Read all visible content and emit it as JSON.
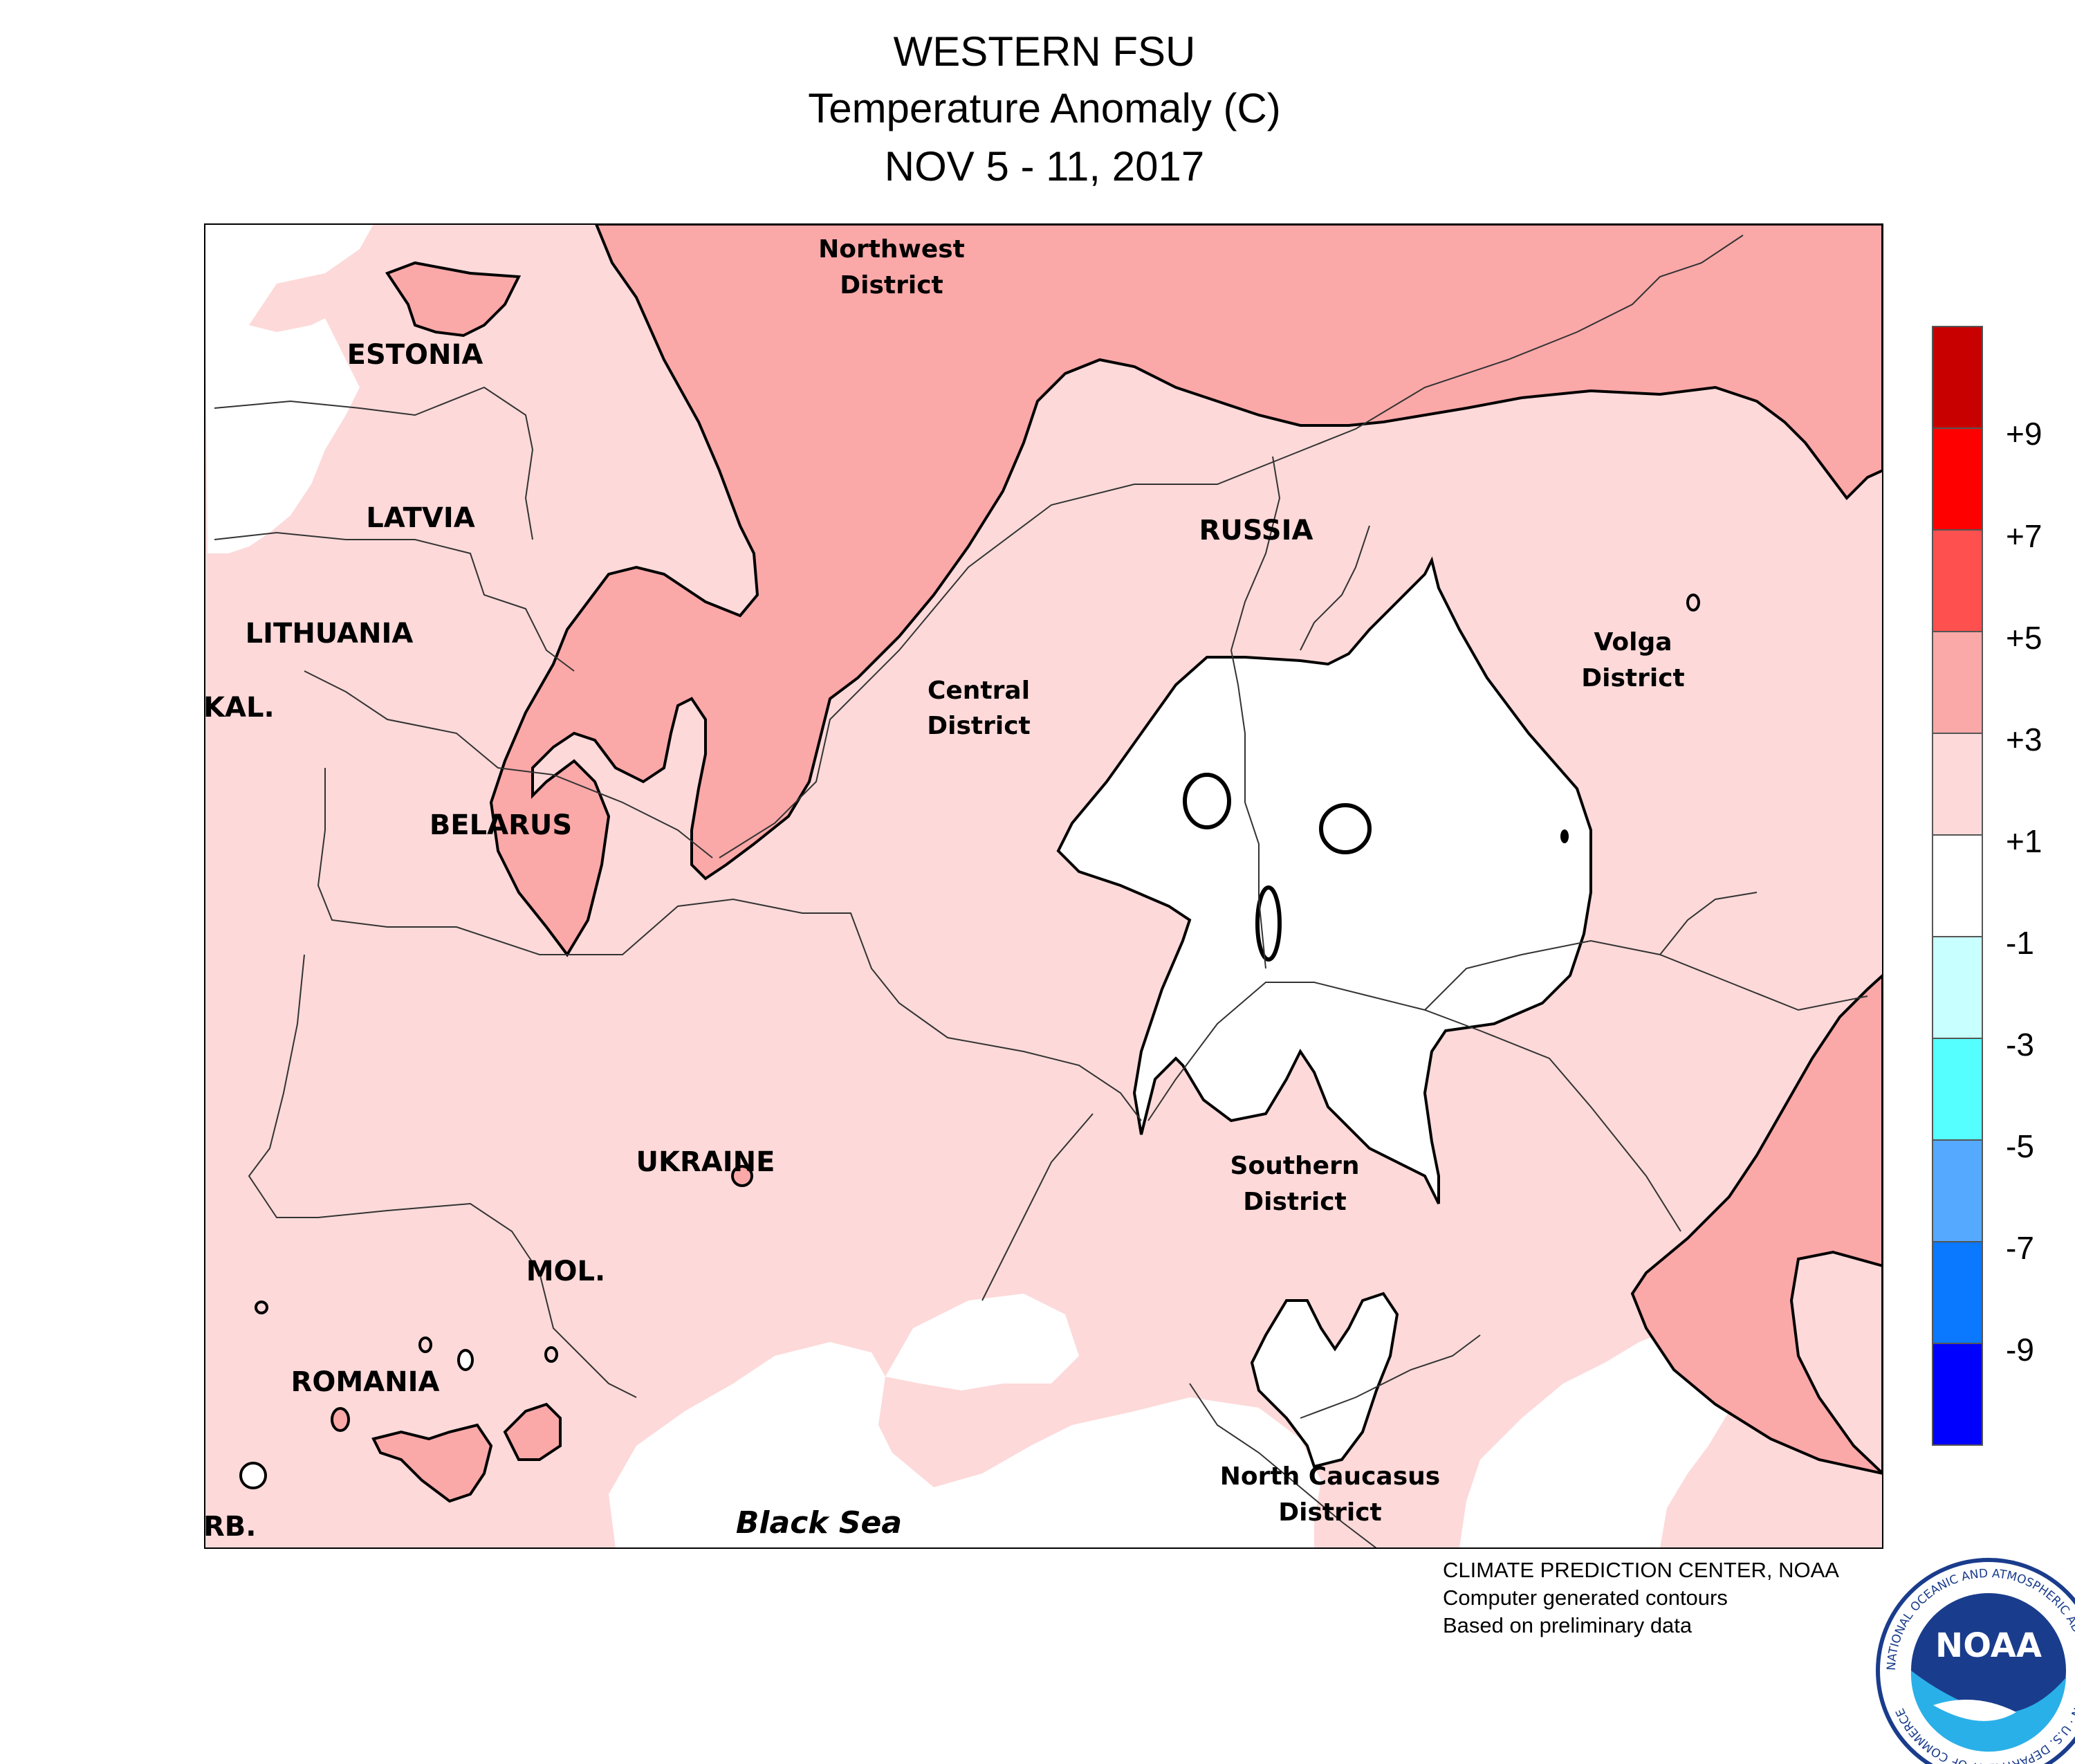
{
  "title": {
    "line1": "WESTERN FSU",
    "line2": "Temperature Anomaly (C)",
    "line3": "NOV 5 - 11, 2017"
  },
  "map": {
    "countries": [
      "ESTONIA",
      "LATVIA",
      "LITHUANIA",
      "KAL.",
      "BELARUS",
      "UKRAINE",
      "MOL.",
      "ROMANIA",
      "RB.",
      "RUSSIA"
    ],
    "districts": {
      "northwest": [
        "Northwest",
        "District"
      ],
      "central": [
        "Central",
        "District"
      ],
      "volga": [
        "Volga",
        "District"
      ],
      "southern": [
        "Southern",
        "District"
      ],
      "north_caucasus": [
        "North Caucasus",
        "District"
      ]
    },
    "sea": "Black Sea"
  },
  "legend": {
    "labels": [
      "+9",
      "+7",
      "+5",
      "+3",
      "+1",
      "-1",
      "-3",
      "-5",
      "-7",
      "-9"
    ],
    "colors": [
      "#c80000",
      "#ff0000",
      "#ff5050",
      "#fba8a8",
      "#fdd9d9",
      "#ffffff",
      "#c8ffff",
      "#55ffff",
      "#55aaff",
      "#0a78ff",
      "#0000ff"
    ]
  },
  "colors": {
    "anomaly_1_3": "#fdd9d9",
    "anomaly_3_5": "#fba8a8",
    "neutral": "#ffffff",
    "sea_label": "#1458d0"
  },
  "footer": {
    "line1": "CLIMATE PREDICTION CENTER, NOAA",
    "line2": "Computer generated contours",
    "line3": "Based on preliminary data"
  },
  "logo": {
    "text": "NOAA",
    "ring": "NATIONAL OCEANIC AND ATMOSPHERIC ADMINISTRATION · U.S. DEPARTMENT OF COMMERCE"
  }
}
